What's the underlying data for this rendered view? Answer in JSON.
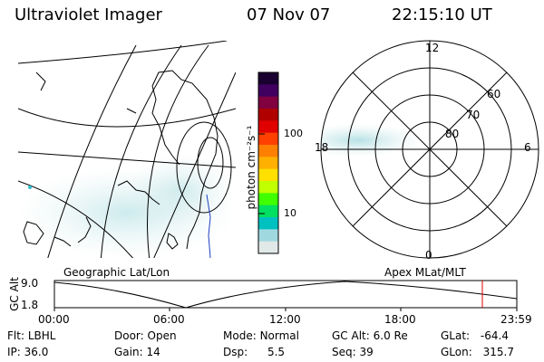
{
  "header": {
    "instrument": "Ultraviolet Imager",
    "date": "07 Nov 07",
    "time": "22:15:10 UT"
  },
  "colorbar": {
    "unit_label": "photon cm⁻²s⁻¹",
    "ticks": [
      "100",
      "10"
    ],
    "colors": [
      "#1a0030",
      "#400060",
      "#800040",
      "#b00000",
      "#e00000",
      "#ff4000",
      "#ff8000",
      "#ffb000",
      "#ffe000",
      "#c0ff00",
      "#40ff00",
      "#00e060",
      "#00c0c0",
      "#a0d8e0",
      "#e0e8e8"
    ]
  },
  "geo_map": {
    "label": "Geographic Lat/Lon"
  },
  "polar": {
    "label": "Apex MLat/MLT",
    "mlt_labels": {
      "top": "12",
      "left": "18",
      "right": "6",
      "bottom": "0"
    },
    "lat_labels": [
      "60",
      "70",
      "80"
    ]
  },
  "altitude_plot": {
    "axis_label": "GC Alt",
    "y_ticks": [
      "9.0",
      "1.8"
    ],
    "x_ticks": [
      "00:00",
      "06:00",
      "12:00",
      "18:00",
      "23:59"
    ]
  },
  "status": {
    "filter": {
      "label": "Flt:",
      "value": "LBHL"
    },
    "ip": {
      "label": "IP:",
      "value": "36.0"
    },
    "door": {
      "label": "Door:",
      "value": "Open"
    },
    "gain": {
      "label": "Gain:",
      "value": "14"
    },
    "mode": {
      "label": "Mode:",
      "value": "Normal"
    },
    "dsp": {
      "label": "Dsp:",
      "value": "5.5"
    },
    "gc_alt": {
      "label": "GC Alt:",
      "value": "6.0 Re"
    },
    "seq": {
      "label": "Seq:",
      "value": "39"
    },
    "glat": {
      "label": "GLat:",
      "value": "-64.4"
    },
    "glon": {
      "label": "GLon:",
      "value": "315.7"
    }
  }
}
